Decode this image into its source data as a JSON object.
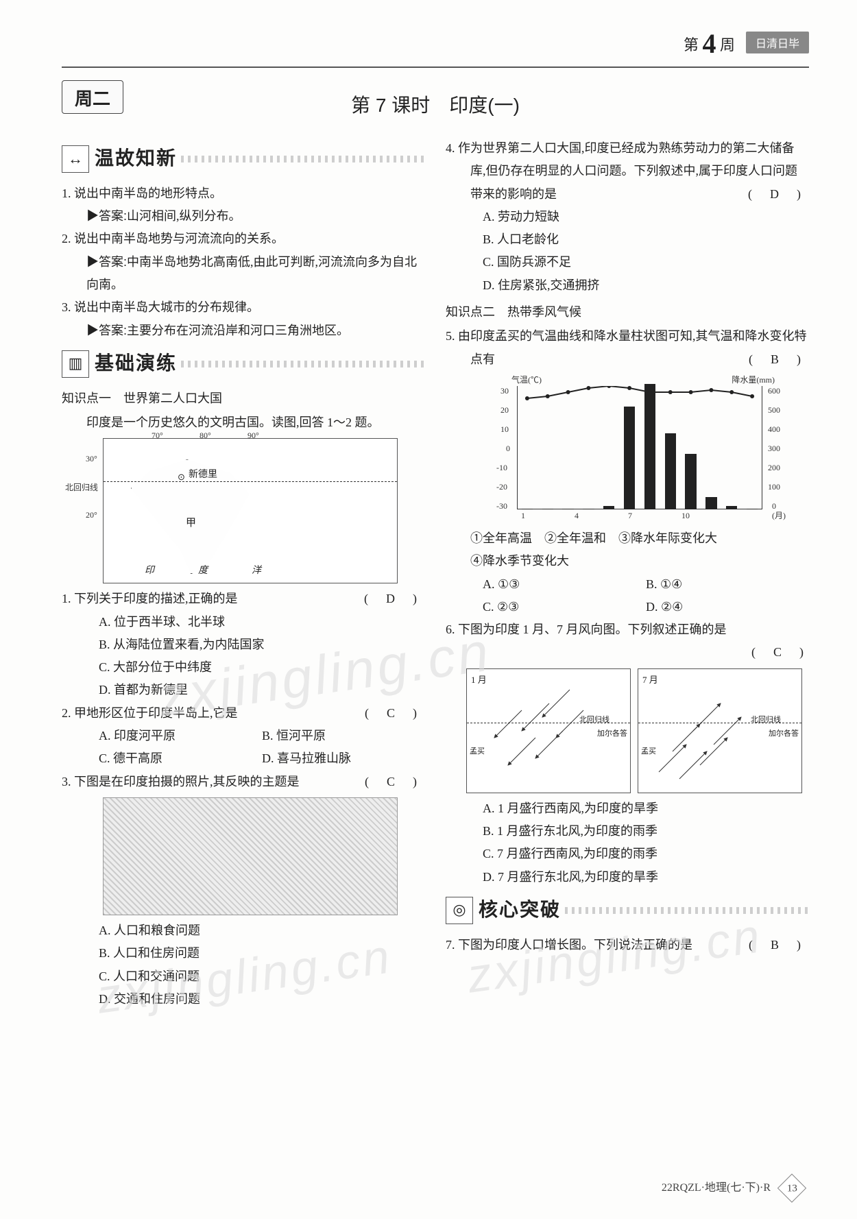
{
  "header": {
    "week_prefix": "第",
    "week_number": "4",
    "week_suffix": "周",
    "badge": "日清日毕"
  },
  "day_tab": "周二",
  "lesson_title": "第 7 课时　印度(一)",
  "section_heads": {
    "review": "温故知新",
    "practice": "基础演练",
    "core": "核心突破"
  },
  "review": {
    "q1": "1. 说出中南半岛的地形特点。",
    "a1_label": "▶答案:",
    "a1": "山河相间,纵列分布。",
    "q2": "2. 说出中南半岛地势与河流流向的关系。",
    "a2_label": "▶答案:",
    "a2": "中南半岛地势北高南低,由此可判断,河流流向多为自北向南。",
    "q3": "3. 说出中南半岛大城市的分布规律。",
    "a3_label": "▶答案:",
    "a3": "主要分布在河流沿岸和河口三角洲地区。"
  },
  "kp1_title": "知识点一　世界第二人口大国",
  "kp1_intro": "印度是一个历史悠久的文明古国。读图,回答 1～2 题。",
  "map1": {
    "lons": [
      "70°",
      "80°",
      "90°"
    ],
    "lat_top": "30°",
    "lat_mid": "20°",
    "tropic": "北回归线",
    "capital": "新德里",
    "label_jia": "甲",
    "ocean": "印　　度　　洋"
  },
  "q1": {
    "stem": "1. 下列关于印度的描述,正确的是",
    "ans": "(　D　)",
    "A": "A. 位于西半球、北半球",
    "B": "B. 从海陆位置来看,为内陆国家",
    "C": "C. 大部分位于中纬度",
    "D": "D. 首都为新德里"
  },
  "q2": {
    "stem": "2. 甲地形区位于印度半岛上,它是",
    "ans": "(　C　)",
    "A": "A. 印度河平原",
    "B": "B. 恒河平原",
    "C": "C. 德干高原",
    "D": "D. 喜马拉雅山脉"
  },
  "q3": {
    "stem": "3. 下图是在印度拍摄的照片,其反映的主题是",
    "ans": "(　C　)",
    "A": "A. 人口和粮食问题",
    "B": "B. 人口和住房问题",
    "C": "C. 人口和交通问题",
    "D": "D. 交通和住房问题"
  },
  "q4": {
    "stem": "4. 作为世界第二人口大国,印度已经成为熟练劳动力的第二大储备库,但仍存在明显的人口问题。下列叙述中,属于印度人口问题带来的影响的是",
    "ans": "(　D　)",
    "A": "A. 劳动力短缺",
    "B": "B. 人口老龄化",
    "C": "C. 国防兵源不足",
    "D": "D. 住房紧张,交通拥挤"
  },
  "kp2_title": "知识点二　热带季风气候",
  "q5": {
    "stem": "5. 由印度孟买的气温曲线和降水量柱状图可知,其气温和降水变化特点有",
    "ans": "(　B　)",
    "choices_line1": "①全年高温　②全年温和　③降水年际变化大",
    "choices_line2": "④降水季节变化大",
    "A": "A. ①③",
    "B": "B. ①④",
    "C": "C. ②③",
    "D": "D. ②④"
  },
  "chart": {
    "temp_label": "气温(℃)",
    "precip_label": "降水量(mm)",
    "x_label": "(月)",
    "x_ticks": [
      "1",
      "4",
      "7",
      "10"
    ],
    "temp_ticks": [
      "30",
      "20",
      "10",
      "0",
      "-10",
      "-20",
      "-30"
    ],
    "precip_ticks": [
      "600",
      "500",
      "400",
      "300",
      "200",
      "100",
      "0"
    ],
    "monthly_precip_mm": [
      2,
      2,
      2,
      3,
      15,
      500,
      610,
      370,
      270,
      60,
      15,
      3
    ],
    "monthly_temp_c": [
      24,
      25,
      27,
      29,
      30,
      29,
      27,
      27,
      27,
      28,
      27,
      25
    ],
    "bar_color": "#222222",
    "line_color": "#222222",
    "bg": "#ffffff"
  },
  "q6": {
    "stem": "6. 下图为印度 1 月、7 月风向图。下列叙述正确的是",
    "ans": "(　C　)",
    "A": "A. 1 月盛行西南风,为印度的旱季",
    "B": "B. 1 月盛行东北风,为印度的雨季",
    "C": "C. 7 月盛行西南风,为印度的雨季",
    "D": "D. 7 月盛行东北风,为印度的旱季"
  },
  "wind": {
    "jan": "1 月",
    "jul": "7 月",
    "tropic": "北回归线",
    "city": "加尔各答",
    "city2": "孟买"
  },
  "q7": {
    "stem": "7. 下图为印度人口增长图。下列说法正确的是",
    "ans": "(　B　)"
  },
  "footer": {
    "code": "22RQZL·地理(七·下)·R",
    "page": "13"
  },
  "watermark": "zxjingling.cn"
}
